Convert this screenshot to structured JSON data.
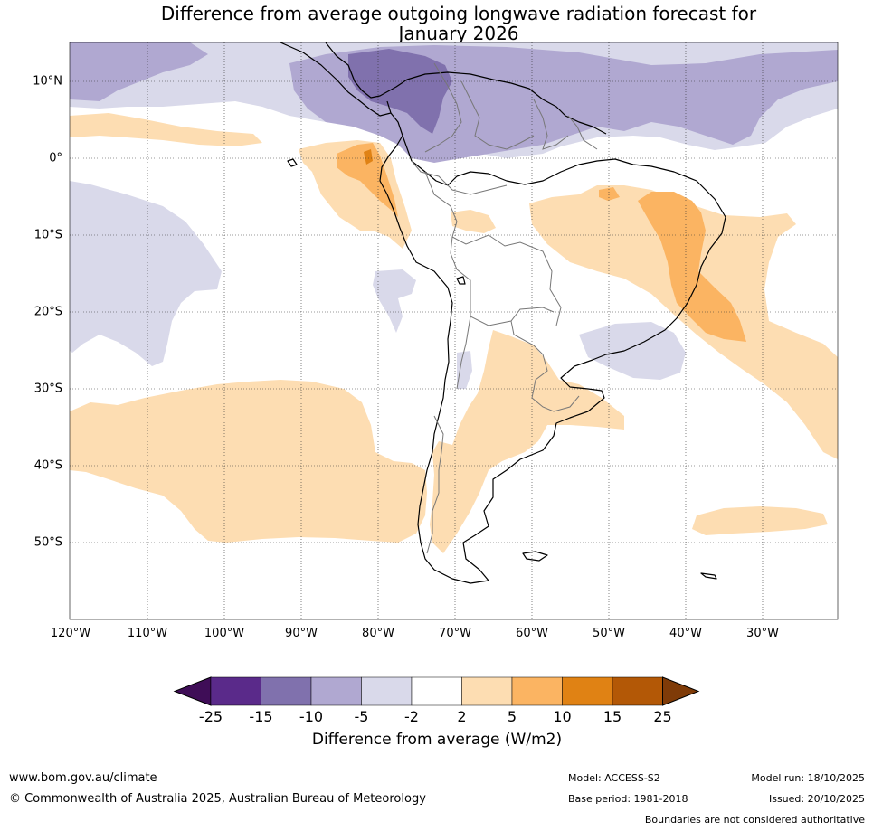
{
  "title": {
    "line1": "Difference from average outgoing longwave radiation forecast for",
    "line2": "January 2026"
  },
  "axes": {
    "latitude_labels": [
      "10°N",
      "0°",
      "10°S",
      "20°S",
      "30°S",
      "40°S",
      "50°S"
    ],
    "longitude_labels": [
      "120°W",
      "110°W",
      "100°W",
      "90°W",
      "80°W",
      "70°W",
      "60°W",
      "50°W",
      "40°W",
      "30°W"
    ]
  },
  "colorbar": {
    "ticks": [
      "-25",
      "-15",
      "-10",
      "-5",
      "-2",
      "2",
      "5",
      "10",
      "15",
      "25"
    ],
    "colors": [
      "#3f0d57",
      "#5a2a8a",
      "#8071ad",
      "#b0a8d1",
      "#d9d9ea",
      "#ffffff",
      "#fdddb2",
      "#fbb462",
      "#e08214",
      "#b35806",
      "#7f3b08"
    ],
    "label": "Difference from average (W/m2)"
  },
  "footer": {
    "url": "www.bom.gov.au/climate",
    "copyright": "© Commonwealth of Australia 2025, Australian Bureau of Meteorology",
    "model": "Model: ACCESS-S2",
    "base_period": "Base period: 1981-2018",
    "model_run": "Model run: 18/10/2025",
    "issued": "Issued: 20/10/2025",
    "boundaries_note": "Boundaries are not considered authoritative"
  }
}
